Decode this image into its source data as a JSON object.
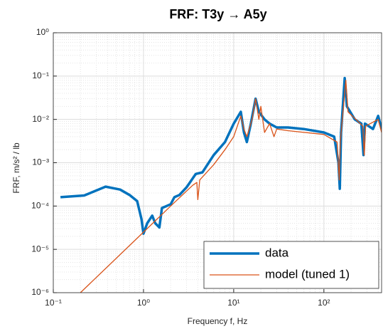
{
  "chart_data": {
    "type": "line",
    "title": "FRF: T3y → A5y",
    "xlabel": "Frequency f, Hz",
    "ylabel": "FRF, m/s² / lb",
    "xscale": "log",
    "yscale": "log",
    "grid": true,
    "legend": "lower right",
    "xlim": [
      0.1,
      436
    ],
    "ylim": [
      1e-06,
      1
    ],
    "xticks": [
      {
        "value": 0.1,
        "label": "10⁻¹"
      },
      {
        "value": 1,
        "label": "10⁰"
      },
      {
        "value": 10,
        "label": "10¹"
      },
      {
        "value": 100,
        "label": "10²"
      }
    ],
    "yticks": [
      {
        "value": 1e-06,
        "label": "10⁻⁶"
      },
      {
        "value": 1e-05,
        "label": "10⁻⁵"
      },
      {
        "value": 0.0001,
        "label": "10⁻⁴"
      },
      {
        "value": 0.001,
        "label": "10⁻³"
      },
      {
        "value": 0.01,
        "label": "10⁻²"
      },
      {
        "value": 0.1,
        "label": "10⁻¹"
      },
      {
        "value": 1,
        "label": "10⁰"
      }
    ],
    "series": [
      {
        "name": "data",
        "color": "#0072bd",
        "width": 3.5,
        "x": [
          0.12,
          0.22,
          0.38,
          0.55,
          0.7,
          0.85,
          0.95,
          1.0,
          1.1,
          1.25,
          1.35,
          1.5,
          1.6,
          2.0,
          2.2,
          2.5,
          3,
          3.8,
          4.5,
          6,
          8,
          10,
          12,
          13,
          14,
          15.5,
          17.5,
          19,
          22,
          25,
          30,
          40,
          60,
          100,
          130,
          145,
          150,
          155,
          170,
          180,
          220,
          260,
          275,
          285,
          350,
          400,
          436
        ],
        "values": [
          0.00016,
          0.000175,
          0.00028,
          0.00024,
          0.00018,
          0.00013,
          5e-05,
          2.3e-05,
          4e-05,
          6e-05,
          4e-05,
          3.2e-05,
          9e-05,
          0.00011,
          0.00016,
          0.00018,
          0.00027,
          0.00055,
          0.0006,
          0.0015,
          0.003,
          0.008,
          0.015,
          0.005,
          0.003,
          0.008,
          0.03,
          0.015,
          0.01,
          0.008,
          0.0065,
          0.0065,
          0.006,
          0.005,
          0.004,
          0.001,
          0.00025,
          0.005,
          0.09,
          0.02,
          0.01,
          0.008,
          0.0015,
          0.008,
          0.006,
          0.012,
          0.006
        ]
      },
      {
        "name": "model (tuned 1)",
        "color": "#d95319",
        "width": 1.3,
        "x": [
          0.2,
          1,
          2,
          3.5,
          3.9,
          4.0,
          4.2,
          6,
          8,
          10,
          12,
          13,
          14,
          16,
          17.5,
          19,
          20,
          22,
          25,
          28,
          30,
          40,
          100,
          140,
          148,
          152,
          175,
          185,
          270,
          280,
          290,
          400,
          436
        ],
        "values": [
          1e-06,
          2.5e-05,
          0.0001,
          0.0003,
          0.00035,
          0.00014,
          0.0004,
          0.0009,
          0.002,
          0.004,
          0.012,
          0.006,
          0.004,
          0.01,
          0.03,
          0.01,
          0.02,
          0.005,
          0.008,
          0.004,
          0.006,
          0.0055,
          0.0045,
          0.003,
          0.0004,
          0.003,
          0.08,
          0.015,
          0.007,
          0.0015,
          0.007,
          0.01,
          0.005
        ]
      }
    ]
  }
}
